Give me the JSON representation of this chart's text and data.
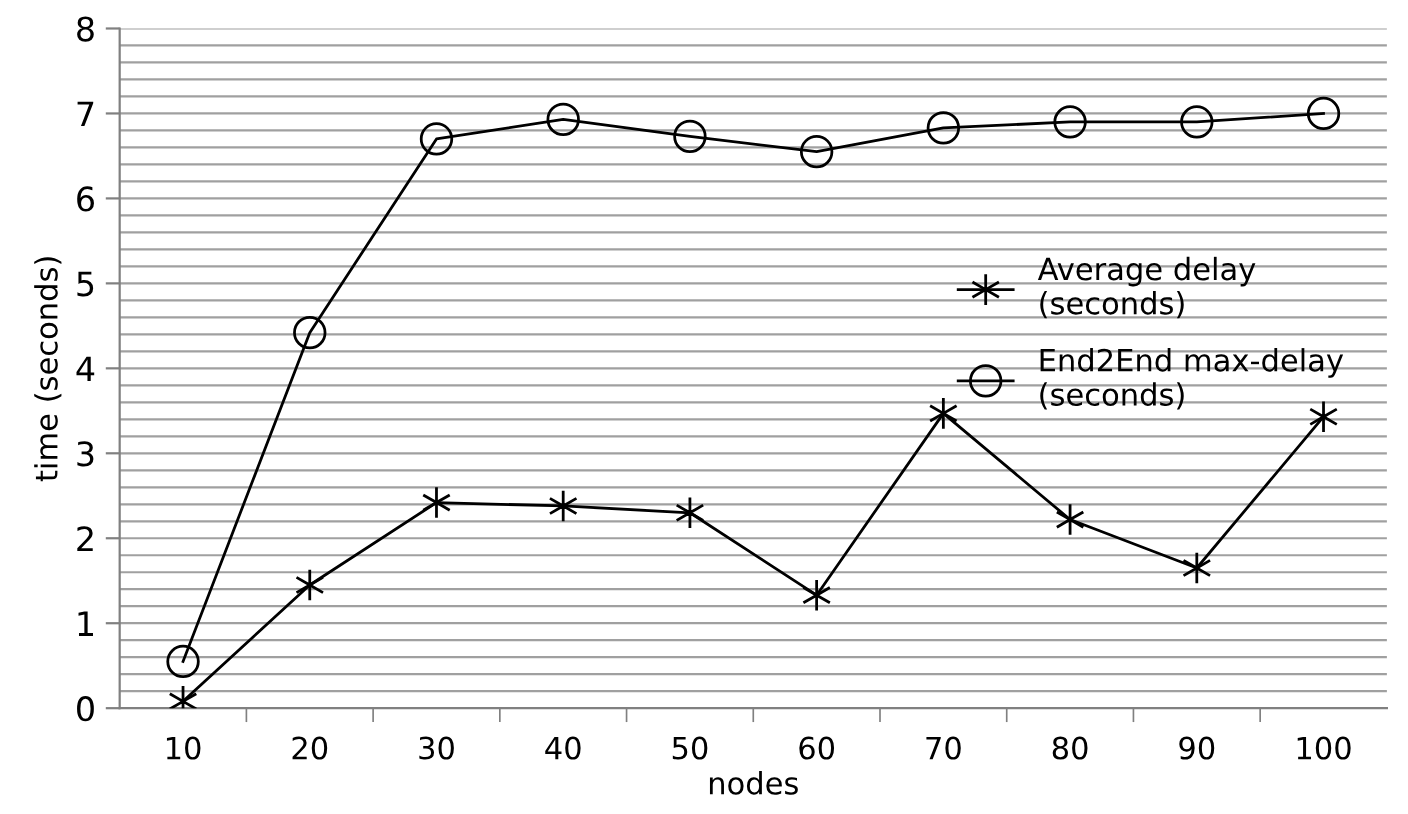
{
  "chart_data": {
    "type": "line",
    "xlabel": "nodes",
    "ylabel": "time (seconds)",
    "categories": [
      "10",
      "20",
      "30",
      "40",
      "50",
      "60",
      "70",
      "80",
      "90",
      "100"
    ],
    "series": [
      {
        "name": "Average delay\n(seconds)",
        "color": "#000000",
        "marker": "cross",
        "values": [
          0.08,
          1.45,
          2.42,
          2.38,
          2.3,
          1.33,
          3.47,
          2.22,
          1.65,
          3.43
        ]
      },
      {
        "name": "End2End max-delay\n(seconds)",
        "color": "#000000",
        "marker": "circle",
        "values": [
          0.55,
          4.42,
          6.7,
          6.93,
          6.73,
          6.55,
          6.83,
          6.9,
          6.9,
          7.0
        ]
      }
    ],
    "ylim": [
      0,
      8
    ],
    "yticks": [
      0,
      {
        "value": 0.2,
        "label": null
      },
      {
        "value": 0.4,
        "label": null
      },
      {
        "value": 0.6,
        "label": null
      },
      {
        "value": 0.8,
        "label": null
      },
      1,
      {
        "value": 1.2,
        "label": null
      },
      {
        "value": 1.4,
        "label": null
      },
      {
        "value": 1.6,
        "label": null
      },
      {
        "value": 1.8,
        "label": null
      },
      2,
      {
        "value": 2.2,
        "label": null
      },
      {
        "value": 2.4,
        "label": null
      },
      {
        "value": 2.6,
        "label": null
      },
      {
        "value": 2.8,
        "label": null
      },
      3,
      {
        "value": 3.2,
        "label": null
      },
      {
        "value": 3.4,
        "label": null
      },
      {
        "value": 3.6,
        "label": null
      },
      {
        "value": 3.8,
        "label": null
      },
      4,
      {
        "value": 4.2,
        "label": null
      },
      {
        "value": 4.4,
        "label": null
      },
      {
        "value": 4.6,
        "label": null
      },
      {
        "value": 4.8,
        "label": null
      },
      5,
      {
        "value": 5.2,
        "label": null
      },
      {
        "value": 5.4,
        "label": null
      },
      {
        "value": 5.6,
        "label": null
      },
      {
        "value": 5.8,
        "label": null
      },
      6,
      {
        "value": 6.2,
        "label": null
      },
      {
        "value": 6.4,
        "label": null
      },
      {
        "value": 6.6,
        "label": null
      },
      {
        "value": 6.8,
        "label": null
      },
      7,
      {
        "value": 7.2,
        "label": null
      },
      {
        "value": 7.4,
        "label": null
      },
      {
        "value": 7.6,
        "label": null
      },
      {
        "value": 7.8,
        "label": null
      },
      8
    ],
    "grid": "y",
    "legend": "right",
    "line_style": "solid"
  }
}
